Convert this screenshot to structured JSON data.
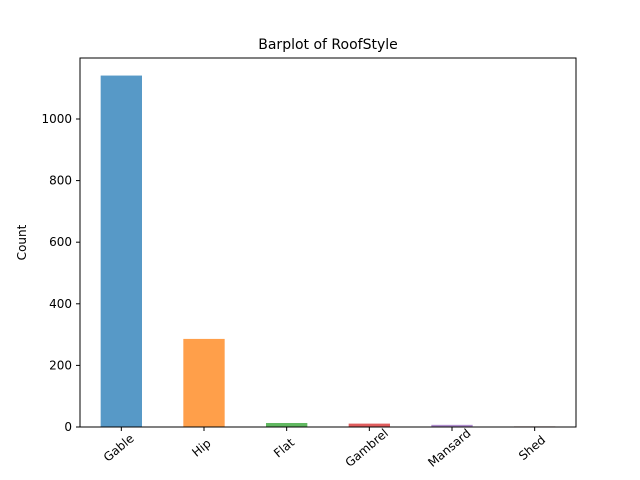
{
  "chart_data": {
    "type": "bar",
    "title": "Barplot of RoofStyle",
    "xlabel": "",
    "ylabel": "Count",
    "categories": [
      "Gable",
      "Hip",
      "Flat",
      "Gambrel",
      "Mansard",
      "Shed"
    ],
    "values": [
      1141,
      286,
      13,
      11,
      7,
      2
    ],
    "colors": [
      "#1f77b4",
      "#ff7f0e",
      "#2ca02c",
      "#d62728",
      "#9467bd",
      "#8c564b"
    ],
    "bar_opacity": 0.75,
    "ylim": [
      0,
      1198
    ],
    "yticks": [
      0,
      200,
      400,
      600,
      800,
      1000
    ],
    "grid": false,
    "legend": "none"
  }
}
